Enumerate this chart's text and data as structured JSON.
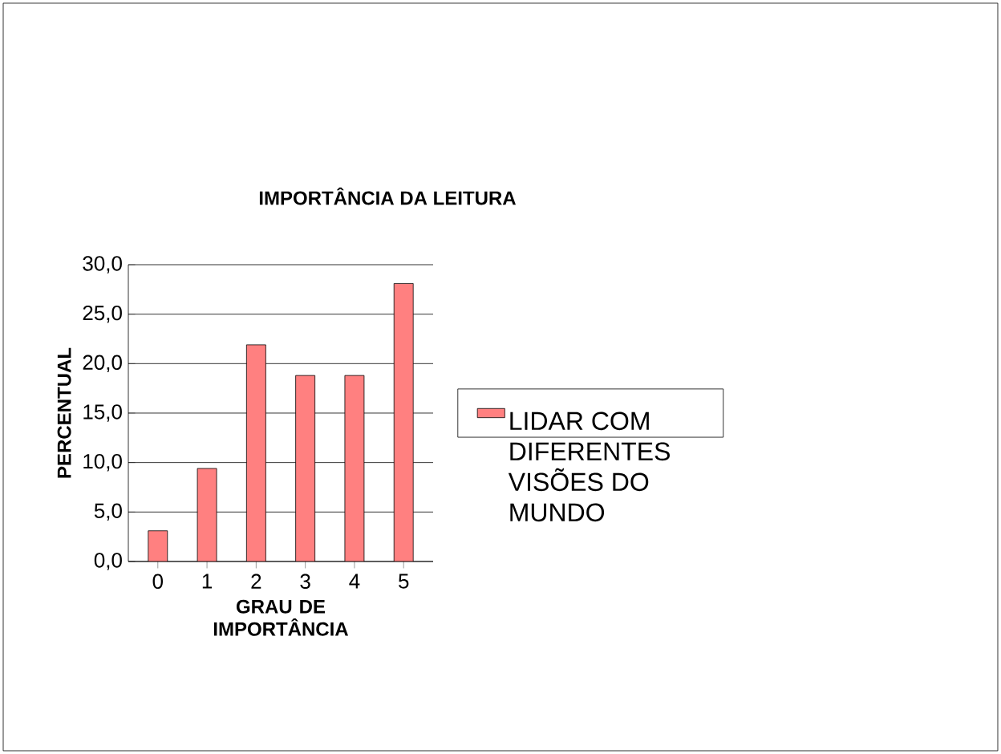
{
  "chart_data": {
    "type": "bar",
    "title": "IMPORTÂNCIA DA LEITURA",
    "xlabel": "GRAU DE IMPORTÂNCIA",
    "ylabel": "PERCENTUAL",
    "categories": [
      "0",
      "1",
      "2",
      "3",
      "4",
      "5"
    ],
    "series": [
      {
        "name": "LIDAR COM DIFERENTES VISÕES DO MUNDO",
        "color": "#ff8080",
        "values": [
          3.1,
          9.4,
          21.9,
          18.8,
          18.8,
          28.1
        ]
      }
    ],
    "ylim": [
      0,
      30
    ],
    "yticks": [
      {
        "value": 0,
        "label": "0,0"
      },
      {
        "value": 5,
        "label": "5,0"
      },
      {
        "value": 10,
        "label": "10,0"
      },
      {
        "value": 15,
        "label": "15,0"
      },
      {
        "value": 20,
        "label": "20,0"
      },
      {
        "value": 25,
        "label": "25,0"
      },
      {
        "value": 30,
        "label": "30,0"
      }
    ],
    "grid": "y",
    "legend": "right"
  }
}
